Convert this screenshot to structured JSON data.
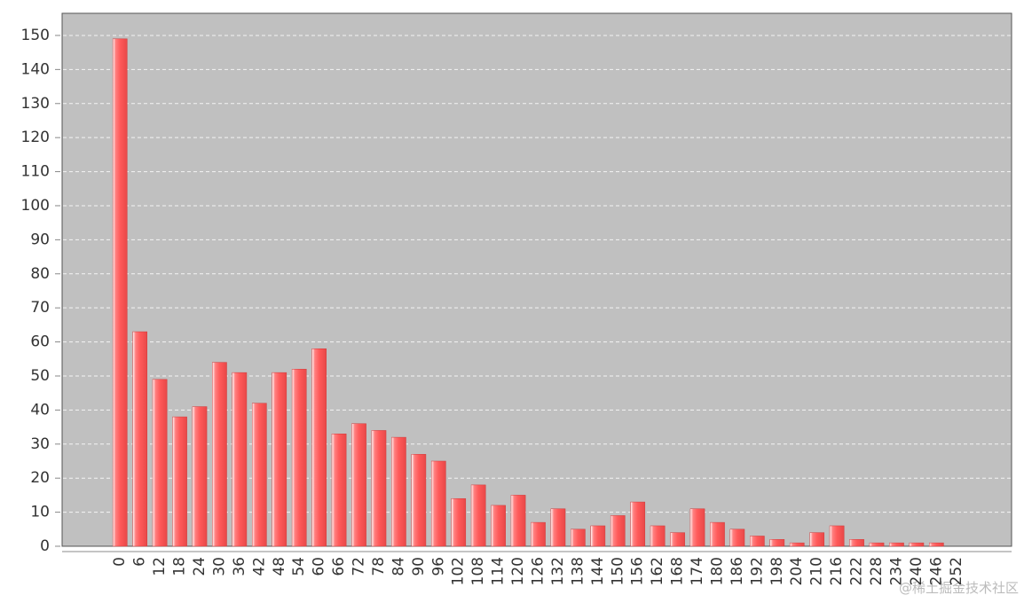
{
  "chart_data": {
    "type": "bar",
    "categories": [
      "0",
      "6",
      "12",
      "18",
      "24",
      "30",
      "36",
      "42",
      "48",
      "54",
      "60",
      "66",
      "72",
      "78",
      "84",
      "90",
      "96",
      "102",
      "108",
      "114",
      "120",
      "126",
      "132",
      "138",
      "144",
      "150",
      "156",
      "162",
      "168",
      "174",
      "180",
      "186",
      "192",
      "198",
      "204",
      "210",
      "216",
      "222",
      "228",
      "234",
      "240",
      "246",
      "252"
    ],
    "values": [
      149,
      63,
      49,
      38,
      41,
      54,
      51,
      42,
      51,
      52,
      58,
      33,
      36,
      34,
      32,
      27,
      25,
      14,
      18,
      12,
      15,
      7,
      11,
      5,
      6,
      9,
      13,
      6,
      4,
      11,
      7,
      5,
      3,
      2,
      1,
      4,
      6,
      2,
      1,
      1,
      1,
      1,
      0
    ],
    "color": "#ff5a5a",
    "ylim": [
      0,
      156.5
    ],
    "yticks": [
      0,
      10,
      20,
      30,
      40,
      50,
      60,
      70,
      80,
      90,
      100,
      110,
      120,
      130,
      140,
      150
    ],
    "grid": true,
    "watermark": "@稀土掘金技术社区"
  }
}
